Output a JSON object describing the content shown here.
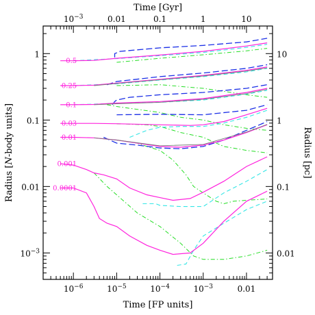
{
  "chart_data": {
    "type": "line",
    "xscale": "log",
    "yscale": "log",
    "xlabel": "Time [FP units]",
    "ylabel": "Radius [N-body units]",
    "x2label": "Time [Gyr]",
    "y2label": "Radius [pc]",
    "xlim": [
      2e-07,
      0.04
    ],
    "ylim": [
      0.0004,
      2.6
    ],
    "grid": false,
    "x_ticks": [
      {
        "value": 1e-06,
        "label": "10^-6"
      },
      {
        "value": 1e-05,
        "label": "10^-5"
      },
      {
        "value": 0.0001,
        "label": "10^-4"
      },
      {
        "value": 0.001,
        "label": "10^-3"
      },
      {
        "value": 0.01,
        "label": "0.01"
      }
    ],
    "y_ticks": [
      {
        "value": 0.001,
        "label": "10^-3"
      },
      {
        "value": 0.01,
        "label": "0.01"
      },
      {
        "value": 0.1,
        "label": "0.1"
      },
      {
        "value": 1,
        "label": "1"
      }
    ],
    "x2_ticks": [
      {
        "value": 0.001,
        "label": "10^-3"
      },
      {
        "value": 0.01,
        "label": "0.01"
      },
      {
        "value": 0.1,
        "label": "0.1"
      },
      {
        "value": 1,
        "label": "1"
      },
      {
        "value": 10,
        "label": "10"
      }
    ],
    "y2_ticks": [
      {
        "value": 0.01,
        "label": "0.01"
      },
      {
        "value": 0.1,
        "label": "0.1"
      },
      {
        "value": 1,
        "label": "1"
      },
      {
        "value": 10,
        "label": "10"
      }
    ],
    "x2_per_x": 1000,
    "y2_per_y": 10,
    "colors": {
      "magenta": "#ff22dd",
      "blue": "#1a2ee6",
      "cyan": "#33e6e6",
      "green": "#22dd22",
      "gray": "#777777",
      "axis": "#000000"
    },
    "series": [
      {
        "label": "0.5",
        "style": "magenta",
        "points": [
          [
            5e-07,
            0.78
          ],
          [
            1e-06,
            0.78
          ],
          [
            3e-06,
            0.79
          ],
          [
            1e-05,
            0.85
          ],
          [
            0.0001,
            0.95
          ],
          [
            0.001,
            1.08
          ],
          [
            0.01,
            1.3
          ],
          [
            0.03,
            1.45
          ]
        ]
      },
      {
        "label": "0.25",
        "style": "magenta",
        "points": [
          [
            5e-07,
            0.33
          ],
          [
            1e-06,
            0.33
          ],
          [
            3e-06,
            0.335
          ],
          [
            1e-05,
            0.36
          ],
          [
            0.0001,
            0.41
          ],
          [
            0.001,
            0.47
          ],
          [
            0.01,
            0.56
          ],
          [
            0.03,
            0.63
          ]
        ]
      },
      {
        "label": "0.1",
        "style": "magenta",
        "points": [
          [
            5e-07,
            0.17
          ],
          [
            1e-06,
            0.17
          ],
          [
            3e-06,
            0.172
          ],
          [
            1e-05,
            0.18
          ],
          [
            0.0001,
            0.19
          ],
          [
            0.001,
            0.21
          ],
          [
            0.01,
            0.26
          ],
          [
            0.03,
            0.3
          ]
        ]
      },
      {
        "label": "0.03",
        "style": "magenta",
        "points": [
          [
            5e-07,
            0.089
          ],
          [
            1e-06,
            0.089
          ],
          [
            3e-06,
            0.089
          ],
          [
            1e-05,
            0.088
          ],
          [
            0.0001,
            0.085
          ],
          [
            0.0005,
            0.083
          ],
          [
            0.001,
            0.085
          ],
          [
            0.003,
            0.095
          ],
          [
            0.01,
            0.12
          ],
          [
            0.03,
            0.15
          ]
        ]
      },
      {
        "label": "0.01",
        "style": "magenta",
        "points": [
          [
            5e-07,
            0.055
          ],
          [
            1e-06,
            0.055
          ],
          [
            3e-06,
            0.054
          ],
          [
            1e-05,
            0.05
          ],
          [
            3e-05,
            0.045
          ],
          [
            0.0001,
            0.04
          ],
          [
            0.0003,
            0.039
          ],
          [
            0.001,
            0.042
          ],
          [
            0.003,
            0.05
          ],
          [
            0.01,
            0.065
          ],
          [
            0.03,
            0.085
          ]
        ]
      },
      {
        "label": "0.001",
        "style": "magenta",
        "points": [
          [
            5e-07,
            0.022
          ],
          [
            1e-06,
            0.021
          ],
          [
            2e-06,
            0.018
          ],
          [
            3e-06,
            0.016
          ],
          [
            5e-06,
            0.015
          ],
          [
            1e-05,
            0.013
          ],
          [
            2e-05,
            0.0095
          ],
          [
            5e-05,
            0.0075
          ],
          [
            0.0001,
            0.0068
          ],
          [
            0.0002,
            0.0062
          ],
          [
            0.0005,
            0.0066
          ],
          [
            0.001,
            0.0082
          ],
          [
            0.003,
            0.012
          ],
          [
            0.01,
            0.02
          ],
          [
            0.03,
            0.028
          ]
        ]
      },
      {
        "label": "0.0001",
        "style": "magenta",
        "points": [
          [
            5e-07,
            0.0095
          ],
          [
            1e-06,
            0.0095
          ],
          [
            2e-06,
            0.008
          ],
          [
            3e-06,
            0.005
          ],
          [
            4e-06,
            0.0033
          ],
          [
            6e-06,
            0.0028
          ],
          [
            1e-05,
            0.0025
          ],
          [
            2e-05,
            0.0018
          ],
          [
            5e-05,
            0.0013
          ],
          [
            0.0001,
            0.0011
          ],
          [
            0.0002,
            0.00095
          ],
          [
            0.0005,
            0.001
          ],
          [
            0.001,
            0.0014
          ],
          [
            0.003,
            0.003
          ],
          [
            0.01,
            0.006
          ],
          [
            0.03,
            0.0085
          ]
        ]
      },
      {
        "label": "",
        "style": "blue",
        "points": [
          [
            9e-06,
            0.88
          ],
          [
            9e-06,
            1.0
          ],
          [
            1.2e-05,
            1.08
          ],
          [
            0.0001,
            1.22
          ],
          [
            0.001,
            1.33
          ],
          [
            0.01,
            1.5
          ],
          [
            0.03,
            1.7
          ]
        ]
      },
      {
        "label": "",
        "style": "blue",
        "points": [
          [
            6e-06,
            0.34
          ],
          [
            1e-05,
            0.38
          ],
          [
            0.0001,
            0.45
          ],
          [
            0.001,
            0.51
          ],
          [
            0.01,
            0.6
          ],
          [
            0.03,
            0.68
          ]
        ]
      },
      {
        "label": "",
        "style": "blue",
        "points": [
          [
            8e-06,
            0.17
          ],
          [
            9e-06,
            0.19
          ],
          [
            1e-05,
            0.2
          ],
          [
            2e-05,
            0.22
          ],
          [
            0.0001,
            0.24
          ],
          [
            0.001,
            0.26
          ],
          [
            0.01,
            0.3
          ],
          [
            0.03,
            0.34
          ]
        ]
      },
      {
        "label": "",
        "style": "blue",
        "points": [
          [
            1e-05,
            0.12
          ],
          [
            0.0001,
            0.122
          ],
          [
            0.001,
            0.12
          ],
          [
            0.01,
            0.14
          ],
          [
            0.03,
            0.17
          ]
        ]
      },
      {
        "label": "",
        "style": "blue",
        "points": [
          [
            5e-06,
            0.055
          ],
          [
            1e-05,
            0.045
          ],
          [
            3e-05,
            0.042
          ],
          [
            0.0001,
            0.038
          ],
          [
            0.0003,
            0.037
          ],
          [
            0.001,
            0.04
          ],
          [
            0.003,
            0.05
          ],
          [
            0.01,
            0.07
          ],
          [
            0.03,
            0.095
          ]
        ]
      },
      {
        "label": "",
        "style": "cyan",
        "points": [
          [
            1e-06,
            0.78
          ],
          [
            1e-05,
            0.84
          ],
          [
            0.0001,
            0.93
          ],
          [
            0.001,
            1.04
          ],
          [
            0.01,
            1.24
          ],
          [
            0.03,
            1.38
          ]
        ]
      },
      {
        "label": "",
        "style": "cyan",
        "points": [
          [
            1e-06,
            0.33
          ],
          [
            1e-05,
            0.35
          ],
          [
            0.0001,
            0.4
          ],
          [
            0.001,
            0.45
          ],
          [
            0.01,
            0.53
          ],
          [
            0.03,
            0.6
          ]
        ]
      },
      {
        "label": "",
        "style": "cyan",
        "points": [
          [
            1e-06,
            0.17
          ],
          [
            1e-05,
            0.178
          ],
          [
            0.0001,
            0.185
          ],
          [
            0.001,
            0.2
          ],
          [
            0.01,
            0.245
          ],
          [
            0.03,
            0.28
          ]
        ]
      },
      {
        "label": "",
        "style": "cyan",
        "points": [
          [
            2e-05,
            0.055
          ],
          [
            5e-05,
            0.07
          ],
          [
            0.0001,
            0.078
          ],
          [
            0.0003,
            0.08
          ],
          [
            0.001,
            0.08
          ],
          [
            0.003,
            0.09
          ],
          [
            0.01,
            0.11
          ],
          [
            0.03,
            0.14
          ]
        ]
      },
      {
        "label": "",
        "style": "cyan",
        "points": [
          [
            4e-05,
            0.0055
          ],
          [
            8e-05,
            0.0055
          ],
          [
            0.0001,
            0.0052
          ],
          [
            0.0003,
            0.005
          ],
          [
            0.001,
            0.005
          ],
          [
            0.003,
            0.008
          ],
          [
            0.01,
            0.012
          ],
          [
            0.03,
            0.018
          ]
        ]
      },
      {
        "label": "",
        "style": "cyan",
        "points": [
          [
            0.00025,
            0.00065
          ],
          [
            0.0004,
            0.00068
          ],
          [
            0.0006,
            0.0011
          ],
          [
            0.001,
            0.0018
          ],
          [
            0.003,
            0.0028
          ],
          [
            0.01,
            0.0045
          ],
          [
            0.03,
            0.006
          ]
        ]
      },
      {
        "label": "",
        "style": "green",
        "points": [
          [
            1e-05,
            0.74
          ],
          [
            0.0001,
            0.85
          ],
          [
            0.001,
            0.96
          ],
          [
            0.01,
            1.1
          ],
          [
            0.03,
            1.2
          ]
        ]
      },
      {
        "label": "",
        "style": "green",
        "points": [
          [
            1e-05,
            0.33
          ],
          [
            0.0001,
            0.34
          ],
          [
            0.001,
            0.3
          ],
          [
            0.003,
            0.27
          ],
          [
            0.01,
            0.24
          ],
          [
            0.03,
            0.22
          ]
        ]
      },
      {
        "label": "",
        "style": "green",
        "points": [
          [
            6e-06,
            0.17
          ],
          [
            1e-05,
            0.16
          ],
          [
            0.0001,
            0.13
          ],
          [
            0.0003,
            0.11
          ],
          [
            0.001,
            0.1
          ],
          [
            0.003,
            0.085
          ],
          [
            0.01,
            0.075
          ],
          [
            0.03,
            0.07
          ]
        ]
      },
      {
        "label": "",
        "style": "green",
        "points": [
          [
            1e-05,
            0.088
          ],
          [
            5e-05,
            0.085
          ],
          [
            0.0001,
            0.08
          ],
          [
            0.0003,
            0.065
          ],
          [
            0.001,
            0.055
          ],
          [
            0.003,
            0.04
          ],
          [
            0.01,
            0.035
          ],
          [
            0.03,
            0.032
          ]
        ]
      },
      {
        "label": "",
        "style": "green",
        "points": [
          [
            1e-05,
            0.05
          ],
          [
            3e-05,
            0.045
          ],
          [
            5e-05,
            0.04
          ],
          [
            0.0001,
            0.035
          ],
          [
            0.0002,
            0.025
          ],
          [
            0.0004,
            0.015
          ],
          [
            0.0006,
            0.01
          ],
          [
            0.001,
            0.008
          ],
          [
            0.002,
            0.006
          ],
          [
            0.003,
            0.0055
          ],
          [
            0.005,
            0.006
          ],
          [
            0.01,
            0.0062
          ],
          [
            0.03,
            0.0065
          ]
        ]
      },
      {
        "label": "",
        "style": "green",
        "points": [
          [
            3e-06,
            0.016
          ],
          [
            6e-06,
            0.01
          ],
          [
            1e-05,
            0.0075
          ],
          [
            3e-05,
            0.004
          ],
          [
            0.0001,
            0.0025
          ],
          [
            0.0003,
            0.0014
          ],
          [
            0.0006,
            0.0009
          ],
          [
            0.001,
            0.0008
          ],
          [
            0.003,
            0.0008
          ],
          [
            0.01,
            0.0009
          ],
          [
            0.03,
            0.0011
          ]
        ]
      },
      {
        "label": "",
        "style": "gray",
        "points": [
          [
            3e-06,
            0.33
          ],
          [
            1e-05,
            0.355
          ],
          [
            0.0001,
            0.405
          ],
          [
            0.001,
            0.46
          ],
          [
            0.01,
            0.545
          ],
          [
            0.03,
            0.61
          ]
        ]
      },
      {
        "label": "",
        "style": "gray",
        "points": [
          [
            3e-06,
            0.17
          ],
          [
            1e-05,
            0.176
          ],
          [
            0.0001,
            0.185
          ],
          [
            0.001,
            0.205
          ],
          [
            0.01,
            0.25
          ],
          [
            0.03,
            0.29
          ]
        ]
      },
      {
        "label": "",
        "style": "gray",
        "points": [
          [
            3e-06,
            0.054
          ],
          [
            1e-05,
            0.05
          ],
          [
            0.0001,
            0.041
          ],
          [
            0.001,
            0.043
          ],
          [
            0.01,
            0.066
          ],
          [
            0.03,
            0.086
          ]
        ]
      }
    ]
  }
}
